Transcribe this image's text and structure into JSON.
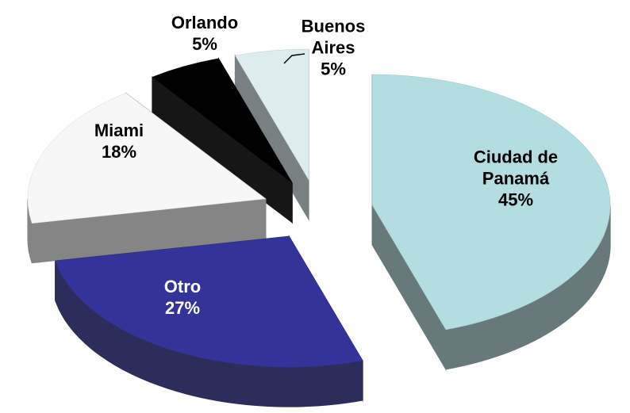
{
  "chart_data": {
    "type": "pie",
    "categories": [
      "Ciudad de Panamá",
      "Otro",
      "Miami",
      "Orlando",
      "Buenos Aires"
    ],
    "values": [
      45,
      27,
      18,
      5,
      5
    ],
    "value_labels": [
      "45%",
      "27%",
      "18%",
      "5%",
      "5%"
    ],
    "colors": [
      "#b3dde0",
      "#333399",
      "#f7f7f7",
      "#000000",
      "#dcecef"
    ]
  }
}
